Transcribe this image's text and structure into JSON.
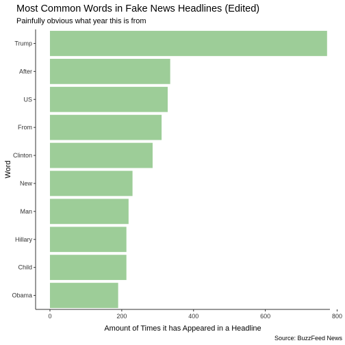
{
  "chart_data": {
    "type": "bar",
    "orientation": "horizontal",
    "title": "Most Common Words in Fake News Headlines (Edited)",
    "subtitle": "Painfully obvious what year this is from",
    "caption": "Source: BuzzFeed News",
    "xlabel": "Amount of Times it has Appeared in a Headline",
    "ylabel": "Word",
    "categories": [
      "Trump",
      "After",
      "US",
      "From",
      "Clinton",
      "New",
      "Man",
      "Hillary",
      "Child",
      "Obama"
    ],
    "values": [
      772,
      335,
      328,
      311,
      286,
      230,
      219,
      213,
      213,
      190
    ],
    "xlim": [
      -40,
      780
    ],
    "xticks": [
      0,
      200,
      400,
      600,
      800
    ],
    "grid": false,
    "legend": "none",
    "bar_color": "#9dcd98",
    "axis_color": "#333333"
  }
}
